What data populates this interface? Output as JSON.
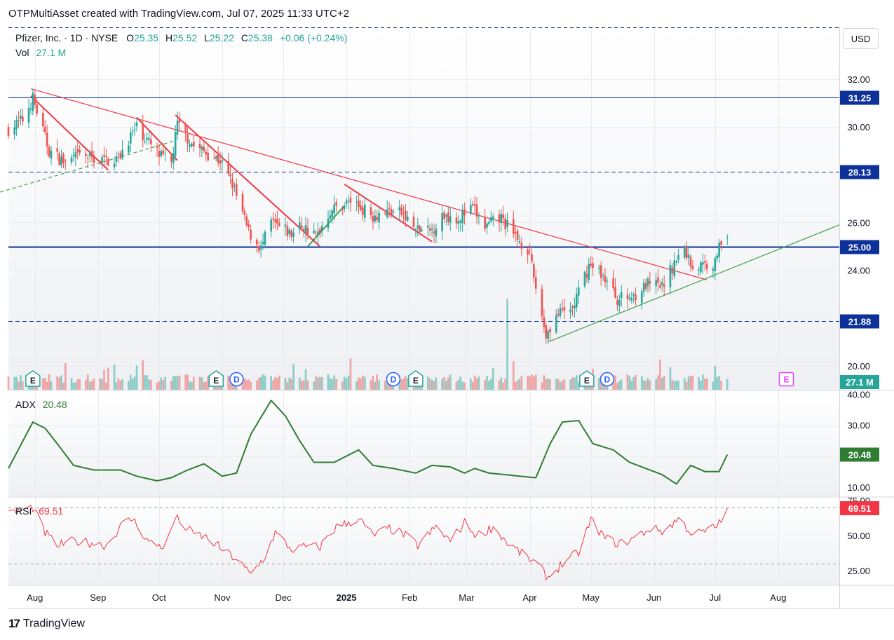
{
  "header": {
    "attribution": "OTPMultiAsset created with TradingView.com, Jul 07, 2025 11:33 UTC+2"
  },
  "legend": {
    "symbol": "Pfizer, Inc. · 1D · NYSE",
    "o_label": "O",
    "o_value": "25.35",
    "h_label": "H",
    "h_value": "25.52",
    "l_label": "L",
    "l_value": "25.22",
    "c_label": "C",
    "c_value": "25.38",
    "change": "+0.06 (+0.24%)",
    "vol_label": "Vol",
    "vol_value": "27.1 M"
  },
  "currency": "USD",
  "footer": {
    "brand": "TradingView",
    "brand_mark": "17"
  },
  "colors": {
    "up": "#26a69a",
    "down": "#ef5350",
    "level": "#0c3299",
    "trend_red": "#f23645",
    "trend_green": "#43a047",
    "adx": "#2e7d32",
    "rsi": "#f23645",
    "event_e": "#26a69a",
    "event_d": "#2962ff",
    "event_future": "#e040fb"
  },
  "chart_data": [
    {
      "type": "candlestick",
      "title": "Pfizer, Inc. · 1D · NYSE",
      "x_tick_labels": [
        "Aug",
        "Sep",
        "Oct",
        "Nov",
        "Dec",
        "2025",
        "Feb",
        "Mar",
        "Apr",
        "May",
        "Jun",
        "Jul",
        "Aug"
      ],
      "x_range": [
        "2024-07-19",
        "2025-08-31"
      ],
      "y_ticks": [
        20.0,
        24.0,
        26.0,
        30.0,
        32.0
      ],
      "ylim": [
        19.0,
        34.2
      ],
      "last": {
        "open": 25.35,
        "high": 25.52,
        "low": 25.22,
        "close": 25.38,
        "change": 0.06,
        "change_pct": 0.24
      },
      "anchors": [
        [
          "2024-07-19",
          29.9
        ],
        [
          "2024-07-26",
          30.3
        ],
        [
          "2024-07-31",
          31.2
        ],
        [
          "2024-08-08",
          29.0
        ],
        [
          "2024-08-16",
          28.5
        ],
        [
          "2024-08-23",
          28.8
        ],
        [
          "2024-09-04",
          28.6
        ],
        [
          "2024-09-11",
          28.7
        ],
        [
          "2024-09-16",
          29.5
        ],
        [
          "2024-09-20",
          30.0
        ],
        [
          "2024-10-01",
          28.8
        ],
        [
          "2024-10-07",
          28.5
        ],
        [
          "2024-10-10",
          30.1
        ],
        [
          "2024-10-18",
          29.2
        ],
        [
          "2024-10-31",
          28.6
        ],
        [
          "2024-11-06",
          27.6
        ],
        [
          "2024-11-14",
          25.6
        ],
        [
          "2024-11-20",
          24.9
        ],
        [
          "2024-11-25",
          26.0
        ],
        [
          "2024-12-05",
          25.5
        ],
        [
          "2024-12-10",
          25.9
        ],
        [
          "2024-12-17",
          25.4
        ],
        [
          "2024-12-24",
          26.5
        ],
        [
          "2025-01-03",
          26.9
        ],
        [
          "2025-01-14",
          26.3
        ],
        [
          "2025-01-22",
          26.5
        ],
        [
          "2025-01-28",
          26.4
        ],
        [
          "2025-02-04",
          25.7
        ],
        [
          "2025-02-11",
          25.6
        ],
        [
          "2025-02-18",
          26.3
        ],
        [
          "2025-02-25",
          26.2
        ],
        [
          "2025-03-04",
          26.6
        ],
        [
          "2025-03-10",
          25.8
        ],
        [
          "2025-03-18",
          26.2
        ],
        [
          "2025-03-24",
          25.5
        ],
        [
          "2025-03-31",
          24.9
        ],
        [
          "2025-04-04",
          23.3
        ],
        [
          "2025-04-09",
          21.3
        ],
        [
          "2025-04-14",
          22.1
        ],
        [
          "2025-04-22",
          22.4
        ],
        [
          "2025-04-30",
          24.2
        ],
        [
          "2025-05-06",
          23.9
        ],
        [
          "2025-05-14",
          22.8
        ],
        [
          "2025-05-21",
          22.9
        ],
        [
          "2025-05-29",
          23.4
        ],
        [
          "2025-06-05",
          23.3
        ],
        [
          "2025-06-11",
          24.3
        ],
        [
          "2025-06-16",
          24.9
        ],
        [
          "2025-06-20",
          24.1
        ],
        [
          "2025-06-25",
          24.2
        ],
        [
          "2025-07-01",
          24.3
        ],
        [
          "2025-07-03",
          25.3
        ],
        [
          "2025-07-07",
          25.4
        ]
      ]
    },
    {
      "type": "bar",
      "title": "Vol",
      "last_value": "27.1 M",
      "spike": {
        "date": "2025-03-21",
        "relative_height": 1.0
      }
    },
    {
      "type": "line",
      "title": "ADX",
      "last_value": 20.48,
      "y_ticks": [
        10.0,
        30.0,
        40.0
      ],
      "ylim": [
        7.0,
        41.0
      ],
      "anchors": [
        [
          "2024-07-19",
          16
        ],
        [
          "2024-07-31",
          31
        ],
        [
          "2024-08-06",
          29
        ],
        [
          "2024-08-12",
          24
        ],
        [
          "2024-08-20",
          17
        ],
        [
          "2024-08-30",
          15.5
        ],
        [
          "2024-09-12",
          15.5
        ],
        [
          "2024-09-20",
          13.5
        ],
        [
          "2024-09-30",
          12
        ],
        [
          "2024-10-07",
          13
        ],
        [
          "2024-10-15",
          15.5
        ],
        [
          "2024-10-23",
          17.5
        ],
        [
          "2024-11-01",
          13.5
        ],
        [
          "2024-11-08",
          14.5
        ],
        [
          "2024-11-15",
          27
        ],
        [
          "2024-11-25",
          38
        ],
        [
          "2024-12-02",
          33
        ],
        [
          "2024-12-09",
          25
        ],
        [
          "2024-12-16",
          18
        ],
        [
          "2024-12-26",
          18
        ],
        [
          "2025-01-07",
          22
        ],
        [
          "2025-01-14",
          17
        ],
        [
          "2025-01-24",
          16
        ],
        [
          "2025-02-04",
          14.5
        ],
        [
          "2025-02-12",
          17
        ],
        [
          "2025-02-21",
          16.5
        ],
        [
          "2025-02-28",
          14.5
        ],
        [
          "2025-03-05",
          16
        ],
        [
          "2025-03-12",
          14.5
        ],
        [
          "2025-03-20",
          14
        ],
        [
          "2025-03-27",
          13.5
        ],
        [
          "2025-04-04",
          13
        ],
        [
          "2025-04-11",
          24
        ],
        [
          "2025-04-17",
          31
        ],
        [
          "2025-04-25",
          31.5
        ],
        [
          "2025-05-02",
          24
        ],
        [
          "2025-05-12",
          22
        ],
        [
          "2025-05-20",
          18
        ],
        [
          "2025-05-28",
          16
        ],
        [
          "2025-06-05",
          14
        ],
        [
          "2025-06-12",
          11
        ],
        [
          "2025-06-19",
          17
        ],
        [
          "2025-06-26",
          15
        ],
        [
          "2025-07-03",
          15
        ],
        [
          "2025-07-07",
          20.48
        ]
      ]
    },
    {
      "type": "line",
      "title": "RSI",
      "last_value": 69.51,
      "y_ticks": [
        25.0,
        50.0,
        75.0
      ],
      "bands": [
        30,
        70
      ],
      "ylim": [
        15.0,
        77.0
      ],
      "anchors": [
        [
          "2024-07-19",
          65
        ],
        [
          "2024-07-26",
          68
        ],
        [
          "2024-07-31",
          70
        ],
        [
          "2024-08-06",
          52
        ],
        [
          "2024-08-12",
          43
        ],
        [
          "2024-08-20",
          46
        ],
        [
          "2024-08-28",
          45
        ],
        [
          "2024-09-05",
          43
        ],
        [
          "2024-09-13",
          58
        ],
        [
          "2024-09-18",
          62
        ],
        [
          "2024-09-26",
          45
        ],
        [
          "2024-10-04",
          42
        ],
        [
          "2024-10-09",
          63
        ],
        [
          "2024-10-17",
          52
        ],
        [
          "2024-10-25",
          48
        ],
        [
          "2024-11-01",
          40
        ],
        [
          "2024-11-08",
          33
        ],
        [
          "2024-11-15",
          22
        ],
        [
          "2024-11-22",
          35
        ],
        [
          "2024-11-27",
          52
        ],
        [
          "2024-12-05",
          40
        ],
        [
          "2024-12-12",
          42
        ],
        [
          "2024-12-19",
          42
        ],
        [
          "2024-12-27",
          56
        ],
        [
          "2025-01-07",
          62
        ],
        [
          "2025-01-14",
          50
        ],
        [
          "2025-01-22",
          55
        ],
        [
          "2025-01-29",
          51
        ],
        [
          "2025-02-05",
          43
        ],
        [
          "2025-02-14",
          56
        ],
        [
          "2025-02-21",
          46
        ],
        [
          "2025-02-28",
          59
        ],
        [
          "2025-03-06",
          50
        ],
        [
          "2025-03-14",
          56
        ],
        [
          "2025-03-21",
          45
        ],
        [
          "2025-03-28",
          37
        ],
        [
          "2025-04-04",
          30
        ],
        [
          "2025-04-10",
          20
        ],
        [
          "2025-04-17",
          30
        ],
        [
          "2025-04-25",
          38
        ],
        [
          "2025-05-01",
          61
        ],
        [
          "2025-05-08",
          48
        ],
        [
          "2025-05-15",
          44
        ],
        [
          "2025-05-22",
          48
        ],
        [
          "2025-05-30",
          55
        ],
        [
          "2025-06-06",
          53
        ],
        [
          "2025-06-13",
          62
        ],
        [
          "2025-06-20",
          51
        ],
        [
          "2025-06-27",
          53
        ],
        [
          "2025-07-02",
          57
        ],
        [
          "2025-07-07",
          69.51
        ]
      ]
    }
  ],
  "levels": [
    {
      "value": 31.25,
      "label": "31.25",
      "style": "solid"
    },
    {
      "value": 28.13,
      "label": "28.13",
      "style": "dashed"
    },
    {
      "value": 25.0,
      "label": "25.00",
      "style": "solid"
    },
    {
      "value": 21.88,
      "label": "21.88",
      "style": "dashed"
    }
  ],
  "trendlines": [
    {
      "color": "red",
      "from": [
        "2024-07-30",
        31.6
      ],
      "to": [
        "2025-06-27",
        23.6
      ]
    },
    {
      "color": "red",
      "from": [
        "2024-07-30",
        31.3
      ],
      "to": [
        "2024-09-06",
        28.2
      ]
    },
    {
      "color": "red",
      "from": [
        "2024-09-20",
        30.4
      ],
      "to": [
        "2024-10-10",
        28.6
      ]
    },
    {
      "color": "red",
      "from": [
        "2024-10-09",
        30.5
      ],
      "to": [
        "2024-12-19",
        25.0
      ]
    },
    {
      "color": "red",
      "from": [
        "2024-12-31",
        27.6
      ],
      "to": [
        "2025-02-12",
        25.2
      ]
    },
    {
      "color": "green",
      "from": [
        "2024-12-13",
        25.0
      ],
      "to": [
        "2024-12-31",
        26.7
      ]
    },
    {
      "color": "green",
      "from": [
        "2025-04-10",
        21.0
      ],
      "to": [
        "2025-08-31",
        25.9
      ]
    },
    {
      "color": "green_dashed",
      "from": [
        "2024-07-12",
        27.2
      ],
      "to": [
        "2024-10-08",
        29.4
      ]
    }
  ],
  "event_markers": [
    {
      "label": "E",
      "kind": "earnings",
      "date": "2024-07-31"
    },
    {
      "label": "E",
      "kind": "earnings",
      "date": "2024-10-29"
    },
    {
      "label": "D",
      "kind": "dividend",
      "date": "2024-11-08"
    },
    {
      "label": "D",
      "kind": "dividend",
      "date": "2025-01-24"
    },
    {
      "label": "E",
      "kind": "earnings",
      "date": "2025-02-04"
    },
    {
      "label": "E",
      "kind": "earnings",
      "date": "2025-04-29"
    },
    {
      "label": "D",
      "kind": "dividend",
      "date": "2025-05-09"
    },
    {
      "label": "E",
      "kind": "future_earnings",
      "date": "2025-08-05"
    }
  ]
}
